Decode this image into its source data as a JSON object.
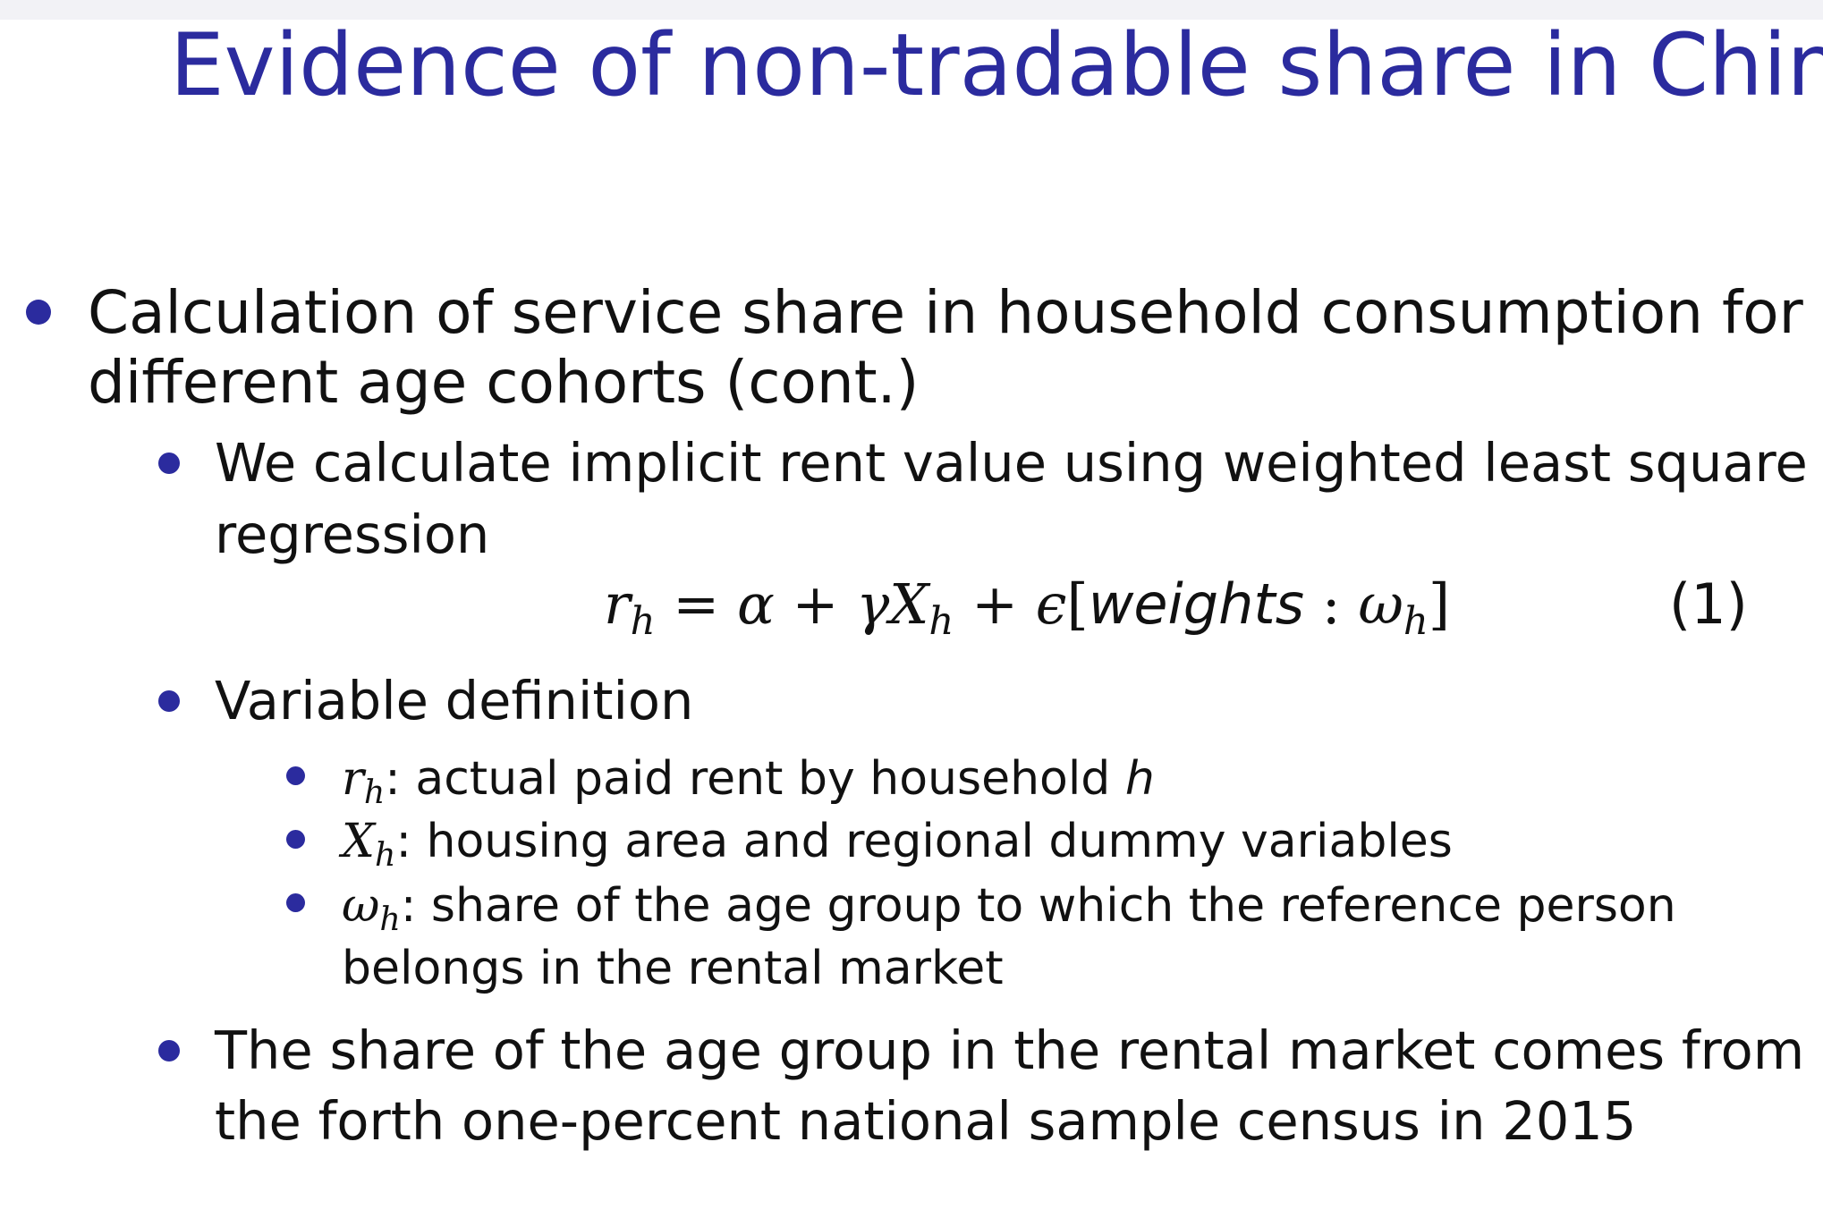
{
  "title": "Evidence of non-tradable share in China",
  "colors": {
    "title": "#2b2b9e",
    "bullet": "#2b2b9e",
    "text": "#111111"
  },
  "bullets": {
    "main": {
      "line1": "Calculation of service share in household consumption for",
      "line2": "different age cohorts (cont.)"
    },
    "wls": {
      "line1": "We calculate implicit rent value using weighted least square",
      "line2": "regression"
    },
    "equation": {
      "r": "r",
      "h1": "h",
      "eq": " = ",
      "alpha": "α",
      "plus1": " + ",
      "gamma": "γ",
      "X": "X",
      "h2": "h",
      "plus2": " + ",
      "eps": "ϵ",
      "lbracket": "[",
      "weights": "weights",
      "colon": " : ",
      "omega": "ω",
      "h3": "h",
      "rbracket": "]",
      "number": "(1)"
    },
    "vardef": {
      "label": "Variable definition",
      "items": [
        {
          "symbol": "r",
          "sub": "h",
          "text": ": actual paid rent by household ",
          "italic_tail": "h"
        },
        {
          "symbol": "X",
          "sub": "h",
          "text": ": housing area and regional dummy variables"
        },
        {
          "symbol": "ω",
          "sub": "h",
          "text": ": share of the age group to which the reference person",
          "line2": "belongs in the rental market"
        }
      ]
    },
    "census": {
      "line1": "The share of the age group in the rental market comes from",
      "line2": "the forth one-percent national sample census in 2015"
    }
  }
}
